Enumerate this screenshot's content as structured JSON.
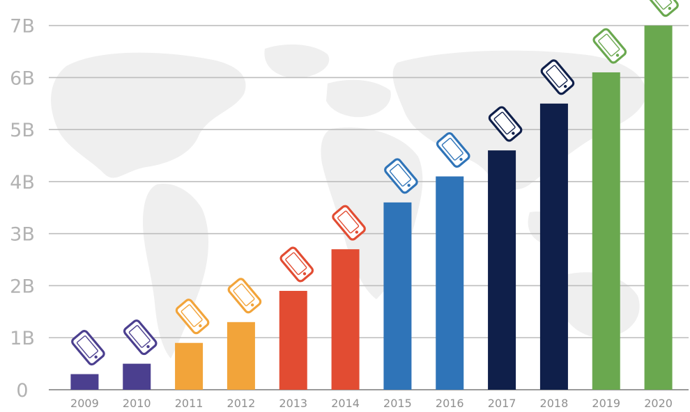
{
  "chart_data": {
    "type": "bar",
    "title": "",
    "xlabel": "",
    "ylabel": "",
    "categories": [
      "2009",
      "2010",
      "2011",
      "2012",
      "2013",
      "2014",
      "2015",
      "2016",
      "2017",
      "2018",
      "2019",
      "2020"
    ],
    "values": [
      0.3,
      0.5,
      0.9,
      1.3,
      1.9,
      2.7,
      3.6,
      4.1,
      4.6,
      5.5,
      6.1,
      7.0
    ],
    "unit": "B",
    "ylim": [
      0,
      7.25
    ],
    "yticks": [
      {
        "value": 0,
        "label": "0"
      },
      {
        "value": 1,
        "label": "1B"
      },
      {
        "value": 2,
        "label": "2B"
      },
      {
        "value": 3,
        "label": "3B"
      },
      {
        "value": 4,
        "label": "4B"
      },
      {
        "value": 5,
        "label": "5B"
      },
      {
        "value": 6,
        "label": "6B"
      },
      {
        "value": 7,
        "label": "7B"
      }
    ],
    "bar_colors": [
      "#4b3f8f",
      "#4b3f8f",
      "#f2a43a",
      "#f2a43a",
      "#e24c32",
      "#e24c32",
      "#2f74b8",
      "#2f74b8",
      "#0f1f4a",
      "#0f1f4a",
      "#6aa84f",
      "#6aa84f"
    ],
    "bar_icon": "smartphone-icon",
    "grid": true,
    "legend": "none"
  }
}
